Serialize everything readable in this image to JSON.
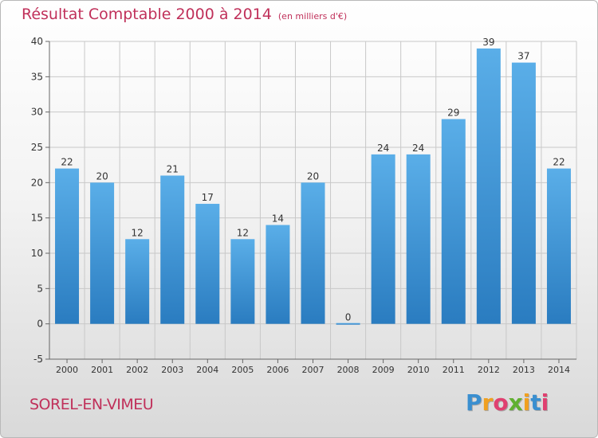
{
  "chart_data": {
    "type": "bar",
    "title": "Résultat Comptable 2000 à 2014",
    "subtitle": "(en milliers d'€)",
    "categories": [
      "2000",
      "2001",
      "2002",
      "2003",
      "2004",
      "2005",
      "2006",
      "2007",
      "2008",
      "2009",
      "2010",
      "2011",
      "2012",
      "2013",
      "2014"
    ],
    "values": [
      22,
      20,
      12,
      21,
      17,
      12,
      14,
      20,
      0,
      24,
      24,
      29,
      39,
      37,
      22
    ],
    "ylim": [
      -5,
      40
    ],
    "yticks": [
      -5,
      0,
      5,
      10,
      15,
      20,
      25,
      30,
      35,
      40
    ],
    "xlabel": "",
    "ylabel": "",
    "grid": true
  },
  "footer": {
    "city": "SOREL-EN-VIMEU",
    "logo_letters": [
      "P",
      "r",
      "o",
      "x",
      "i",
      "t",
      "i"
    ]
  },
  "colors": {
    "title": "#c0305a",
    "bar_light": "#5aaee8",
    "bar_dark": "#2a7cc0",
    "logo": [
      "#3a8fd0",
      "#f0a020",
      "#e04070",
      "#60b030",
      "#f0a020",
      "#3a8fd0",
      "#e04070"
    ]
  }
}
